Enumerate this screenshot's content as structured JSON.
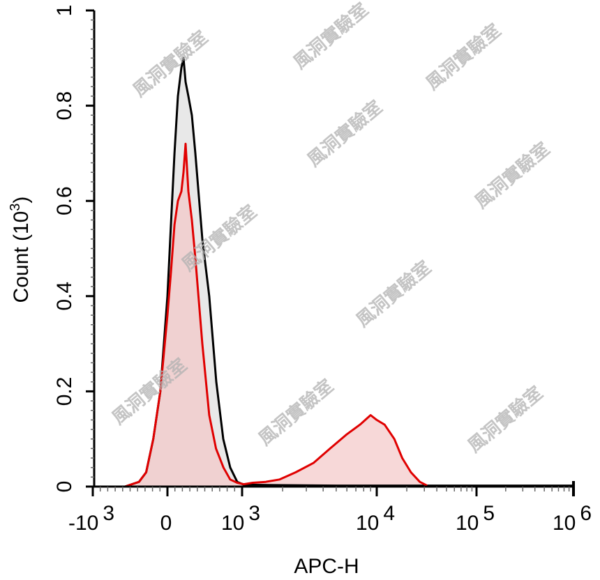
{
  "chart_data": {
    "type": "area",
    "title": "",
    "xlabel": "APC-H",
    "ylabel": "Count",
    "ylabel_unit_base": "10",
    "ylabel_unit_exp": "3",
    "x_scale": "biexponential",
    "xlim": [
      -1000,
      1000000
    ],
    "ylim": [
      0,
      1
    ],
    "grid": false,
    "x_ticks": [
      {
        "value": -1000,
        "base": "-10",
        "exp": "3"
      },
      {
        "value": 0,
        "base": "0",
        "exp": ""
      },
      {
        "value": 1000,
        "base": "10",
        "exp": "3"
      },
      {
        "value": 10000,
        "base": "10",
        "exp": "4"
      },
      {
        "value": 100000,
        "base": "10",
        "exp": "5"
      },
      {
        "value": 1000000,
        "base": "10",
        "exp": "6"
      }
    ],
    "y_ticks": [
      {
        "value": 0,
        "label": "0"
      },
      {
        "value": 0.2,
        "label": "0.2"
      },
      {
        "value": 0.4,
        "label": "0.4"
      },
      {
        "value": 0.6,
        "label": "0.6"
      },
      {
        "value": 0.8,
        "label": "0.8"
      },
      {
        "value": 1,
        "label": "1"
      }
    ],
    "series": [
      {
        "color": "#000000",
        "fill": "#d9d9d9",
        "x": [
          -570,
          -380,
          -285,
          -190,
          -95,
          0,
          47,
          94,
          140,
          187,
          215,
          243,
          280,
          327,
          374,
          467,
          560,
          654,
          748,
          841,
          935,
          1030,
          2000,
          5000,
          10000,
          30000,
          100000,
          1000000
        ],
        "y": [
          0,
          0.01,
          0.03,
          0.1,
          0.2,
          0.4,
          0.55,
          0.7,
          0.82,
          0.88,
          0.9,
          0.85,
          0.82,
          0.78,
          0.7,
          0.52,
          0.4,
          0.22,
          0.1,
          0.04,
          0.01,
          0.004,
          0.003,
          0.002,
          0.002,
          0.002,
          0.002,
          0.002
        ]
      },
      {
        "color": "#e00000",
        "fill": "#f4c8c8",
        "x": [
          -570,
          -380,
          -285,
          -190,
          -95,
          0,
          47,
          94,
          140,
          187,
          215,
          243,
          280,
          327,
          374,
          467,
          560,
          650,
          750,
          840,
          935,
          1030,
          1200,
          1500,
          1900,
          2500,
          3400,
          4500,
          6000,
          7500,
          9000,
          10000,
          12000,
          15000,
          18000,
          22000,
          27000,
          32000
        ],
        "y": [
          0,
          0.01,
          0.03,
          0.1,
          0.2,
          0.36,
          0.45,
          0.55,
          0.6,
          0.62,
          0.66,
          0.72,
          0.62,
          0.56,
          0.48,
          0.3,
          0.15,
          0.08,
          0.04,
          0.015,
          0.008,
          0.005,
          0.008,
          0.01,
          0.015,
          0.03,
          0.05,
          0.08,
          0.11,
          0.13,
          0.15,
          0.14,
          0.13,
          0.1,
          0.06,
          0.03,
          0.01,
          0.002
        ]
      }
    ]
  },
  "watermark": "風洞實驗室"
}
